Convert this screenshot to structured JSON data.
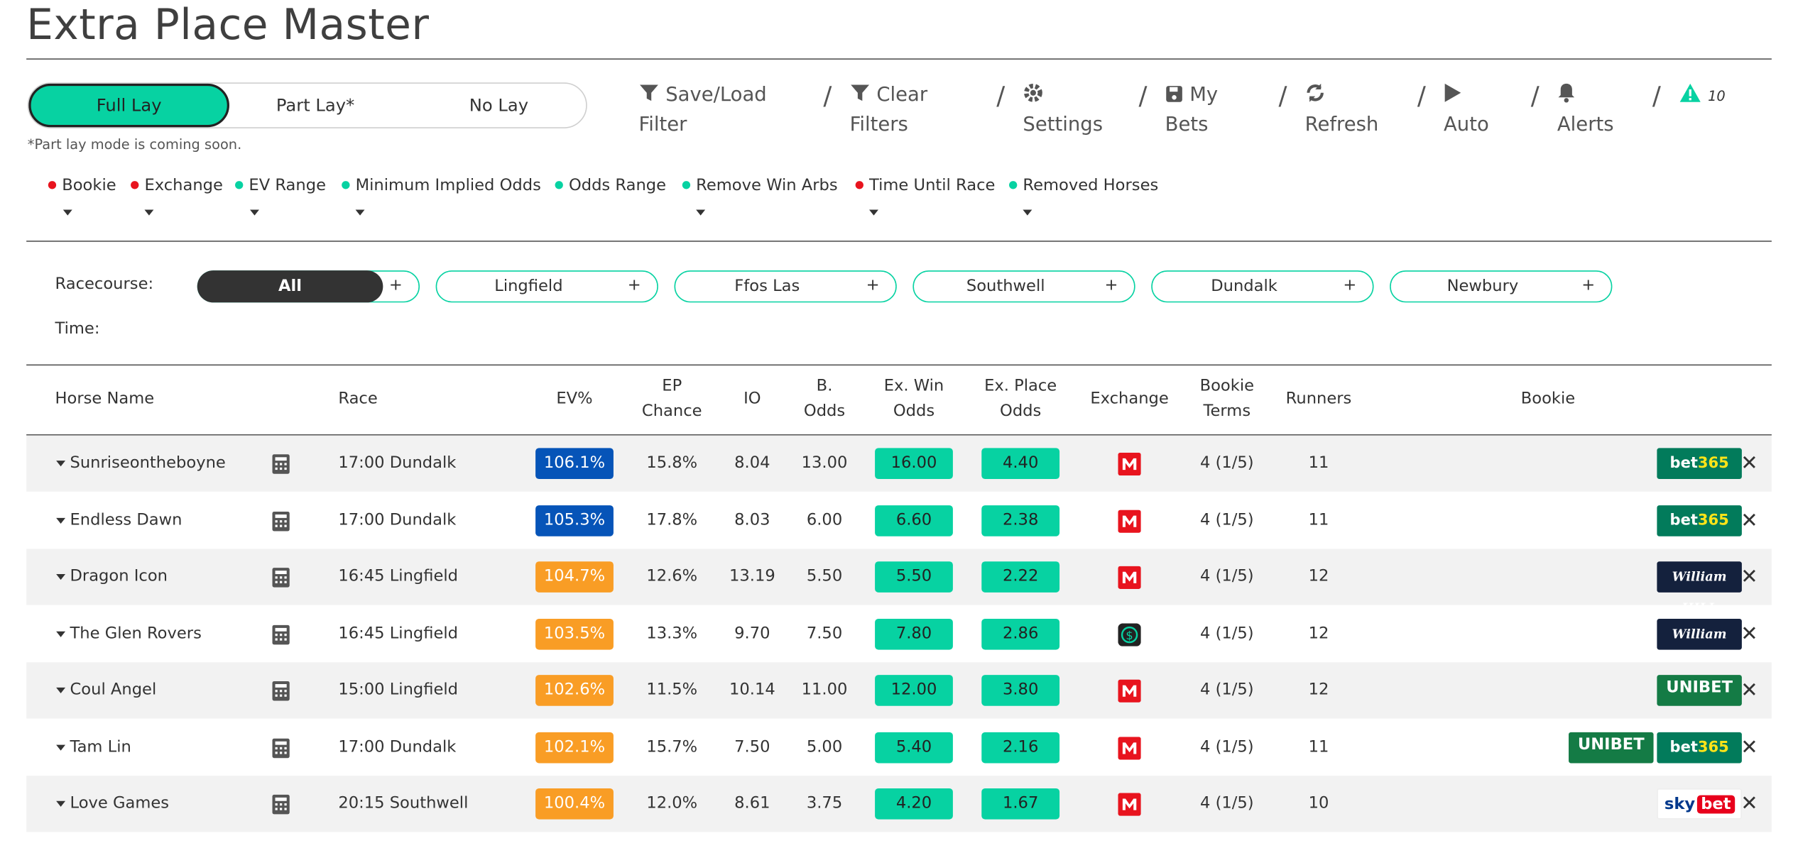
{
  "title": "Extra Place Master",
  "mode": {
    "options": [
      "Full Lay",
      "Part Lay*",
      "No Lay"
    ],
    "note": "*Part lay mode is coming soon."
  },
  "toolbar": {
    "save_load": "Save/Load",
    "save_load_2": "Filter",
    "clear": "Clear",
    "clear_2": "Filters",
    "settings": "Settings",
    "my": "My",
    "bets": "Bets",
    "refresh": "Refresh",
    "auto": "Auto",
    "alerts": "Alerts",
    "alert_count": "10"
  },
  "filters": [
    {
      "label": "Bookie",
      "color": "#e8141e"
    },
    {
      "label": "Exchange",
      "color": "#e8141e"
    },
    {
      "label": "EV Range",
      "color": "#07d2a2"
    },
    {
      "label": "Minimum Implied Odds",
      "color": "#07d2a2"
    },
    {
      "label": "Odds Range",
      "color": "#07d2a2"
    },
    {
      "label": "Remove Win Arbs",
      "color": "#07d2a2"
    },
    {
      "label": "Time Until Race",
      "color": "#e8141e"
    },
    {
      "label": "Removed Horses",
      "color": "#07d2a2"
    }
  ],
  "racecourse": {
    "label": "Racecourse:",
    "time_label": "Time:",
    "courses": [
      "All",
      "Lingfield",
      "Ffos Las",
      "Southwell",
      "Dundalk",
      "Newbury"
    ],
    "plus": "+"
  },
  "table": {
    "headers": {
      "horse": "Horse Name",
      "race": "Race",
      "ev": "EV%",
      "ep1": "EP",
      "ep2": "Chance",
      "io": "IO",
      "bodds1": "B.",
      "bodds2": "Odds",
      "exwin1": "Ex. Win",
      "exwin2": "Odds",
      "explace1": "Ex. Place",
      "explace2": "Odds",
      "exchange": "Exchange",
      "terms1": "Bookie",
      "terms2": "Terms",
      "runners": "Runners",
      "bookie": "Bookie"
    },
    "rows": [
      {
        "horse": "Sunriseontheboyne",
        "race": "17:00 Dundalk",
        "ev": "106.1%",
        "ev_color": "#0654b8",
        "ep": "15.8%",
        "io": "8.04",
        "bodds": "13.00",
        "exwin": "16.00",
        "explace": "4.40",
        "exchange": "matchbook-icon",
        "terms": "4 (1/5)",
        "runners": "11",
        "bookies": [
          "bet365"
        ]
      },
      {
        "horse": "Endless Dawn",
        "race": "17:00 Dundalk",
        "ev": "105.3%",
        "ev_color": "#0654b8",
        "ep": "17.8%",
        "io": "8.03",
        "bodds": "6.00",
        "exwin": "6.60",
        "explace": "2.38",
        "exchange": "matchbook-icon",
        "terms": "4 (1/5)",
        "runners": "11",
        "bookies": [
          "bet365"
        ]
      },
      {
        "horse": "Dragon Icon",
        "race": "16:45 Lingfield",
        "ev": "104.7%",
        "ev_color": "#f99d25",
        "ep": "12.6%",
        "io": "13.19",
        "bodds": "5.50",
        "exwin": "5.50",
        "explace": "2.22",
        "exchange": "matchbook-icon",
        "terms": "4 (1/5)",
        "runners": "12",
        "bookies": [
          "William HILL"
        ]
      },
      {
        "horse": "The Glen Rovers",
        "race": "16:45 Lingfield",
        "ev": "103.5%",
        "ev_color": "#f99d25",
        "ep": "13.3%",
        "io": "9.70",
        "bodds": "7.50",
        "exwin": "7.80",
        "explace": "2.86",
        "exchange": "smarkets-icon",
        "terms": "4 (1/5)",
        "runners": "12",
        "bookies": [
          "William HILL"
        ]
      },
      {
        "horse": "Coul Angel",
        "race": "15:00 Lingfield",
        "ev": "102.6%",
        "ev_color": "#f99d25",
        "ep": "11.5%",
        "io": "10.14",
        "bodds": "11.00",
        "exwin": "12.00",
        "explace": "3.80",
        "exchange": "matchbook-icon",
        "terms": "4 (1/5)",
        "runners": "12",
        "bookies": [
          "UNIBET"
        ]
      },
      {
        "horse": "Tam Lin",
        "race": "17:00 Dundalk",
        "ev": "102.1%",
        "ev_color": "#f99d25",
        "ep": "15.7%",
        "io": "7.50",
        "bodds": "5.00",
        "exwin": "5.40",
        "explace": "2.16",
        "exchange": "matchbook-icon",
        "terms": "4 (1/5)",
        "runners": "11",
        "bookies": [
          "UNIBET",
          "bet365"
        ]
      },
      {
        "horse": "Love Games",
        "race": "20:15 Southwell",
        "ev": "100.4%",
        "ev_color": "#f99d25",
        "ep": "12.0%",
        "io": "8.61",
        "bodds": "3.75",
        "exwin": "4.20",
        "explace": "1.67",
        "exchange": "matchbook-icon",
        "terms": "4 (1/5)",
        "runners": "10",
        "bookies": [
          "sky bet"
        ]
      }
    ]
  },
  "colors": {
    "accent": "#07d2a2",
    "ev_high": "#0654b8",
    "ev_mid": "#f99d25",
    "red": "#e8141e"
  }
}
